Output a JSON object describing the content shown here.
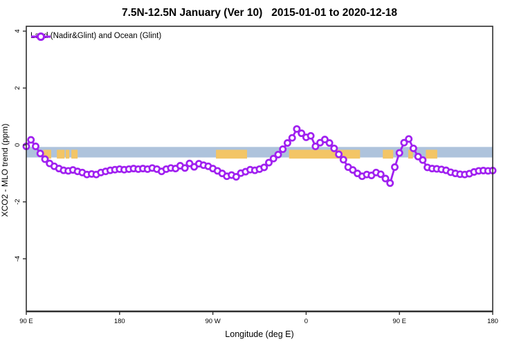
{
  "title": "7.5N-12.5N January (Ver 10)   2015-01-01 to 2020-12-18",
  "legend": {
    "label": "Land (Nadir&Glint) and Ocean (Glint)",
    "series_color": "#a020f0"
  },
  "axes": {
    "x": {
      "label": "Longitude (deg E)",
      "ticks": [
        {
          "lon": 90,
          "label": "90 E"
        },
        {
          "lon": 180,
          "label": "180"
        },
        {
          "lon": 270,
          "label": "90 W"
        },
        {
          "lon": 360,
          "label": "0"
        },
        {
          "lon": 450,
          "label": "90 E"
        },
        {
          "lon": 540,
          "label": "180"
        }
      ]
    },
    "y": {
      "label": "XCO2 - MLO trend (ppm)",
      "ticks": [
        {
          "value": 4,
          "label": "4"
        },
        {
          "value": 2,
          "label": "2"
        },
        {
          "value": 0,
          "label": "0"
        },
        {
          "value": -2,
          "label": "-2"
        },
        {
          "value": -4,
          "label": "-4"
        }
      ]
    }
  },
  "chart_data": {
    "type": "line",
    "title": "7.5N-12.5N January (Ver 10)   2015-01-01 to 2020-12-18",
    "xlabel": "Longitude (deg E)",
    "ylabel": "XCO2 - MLO trend (ppm)",
    "xlim": [
      90,
      540
    ],
    "ylim": [
      -5.85,
      4.17
    ],
    "grid": false,
    "legend_position": "top-left",
    "x_units_note": "longitude unwrapped from 90E eastward; 270=90W, 360=0, 450=90E, 540=180",
    "series": [
      {
        "name": "Land (Nadir&Glint) and Ocean (Glint)",
        "color": "#a020f0",
        "marker": "open-circle",
        "lon_start": 90,
        "lon_step": 4.5,
        "values": [
          -0.05,
          0.18,
          -0.05,
          -0.3,
          -0.5,
          -0.65,
          -0.75,
          -0.83,
          -0.89,
          -0.91,
          -0.88,
          -0.93,
          -0.97,
          -1.04,
          -1.02,
          -1.04,
          -0.97,
          -0.93,
          -0.89,
          -0.87,
          -0.85,
          -0.87,
          -0.85,
          -0.83,
          -0.85,
          -0.83,
          -0.85,
          -0.81,
          -0.85,
          -0.93,
          -0.85,
          -0.81,
          -0.83,
          -0.73,
          -0.81,
          -0.65,
          -0.77,
          -0.66,
          -0.71,
          -0.75,
          -0.83,
          -0.91,
          -1.0,
          -1.1,
          -1.06,
          -1.12,
          -0.99,
          -0.94,
          -0.87,
          -0.89,
          -0.85,
          -0.79,
          -0.62,
          -0.48,
          -0.34,
          -0.15,
          0.07,
          0.25,
          0.56,
          0.41,
          0.27,
          0.32,
          -0.05,
          0.08,
          0.19,
          0.07,
          -0.12,
          -0.33,
          -0.52,
          -0.78,
          -0.88,
          -1.0,
          -1.1,
          -1.04,
          -1.07,
          -0.97,
          -1.03,
          -1.18,
          -1.34,
          -0.78,
          -0.28,
          0.08,
          0.21,
          -0.12,
          -0.41,
          -0.53,
          -0.79,
          -0.83,
          -0.84,
          -0.86,
          -0.89,
          -0.96,
          -1.0,
          -1.03,
          -1.04,
          -1.01,
          -0.95,
          -0.91,
          -0.9,
          -0.91,
          -0.9
        ]
      }
    ],
    "bands": [
      {
        "name": "reference-band",
        "color": "#aec3dc",
        "ymin": -0.44,
        "ymax": -0.07
      }
    ],
    "land_patches": {
      "name": "land-fraction-patches",
      "color": "#f3c566",
      "y_top": -0.17,
      "y_bottom": -0.48,
      "lon_ranges": [
        [
          106.5,
          114
        ],
        [
          119.5,
          127
        ],
        [
          128,
          131.5
        ],
        [
          133.5,
          139.5
        ],
        [
          273,
          303
        ],
        [
          343.5,
          412
        ],
        [
          434,
          444
        ],
        [
          458.5,
          463
        ],
        [
          475.5,
          486.5
        ]
      ]
    }
  }
}
